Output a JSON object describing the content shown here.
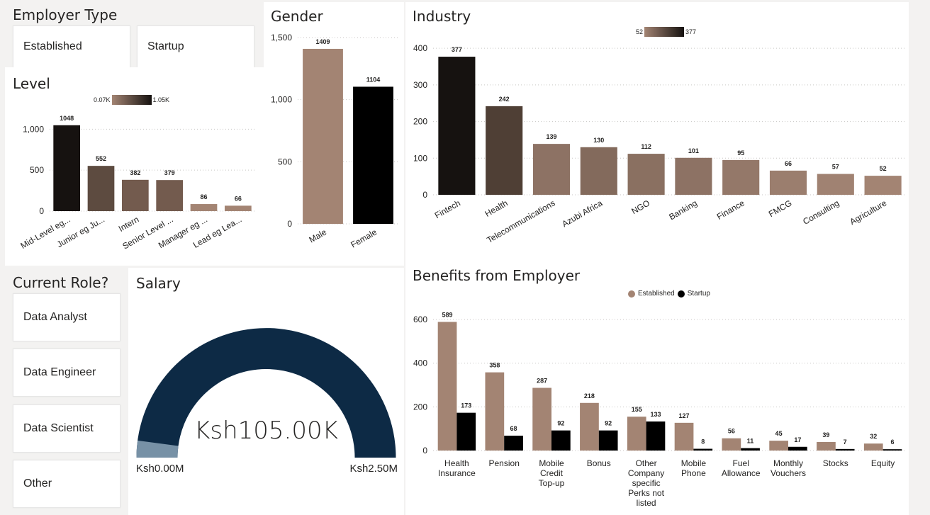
{
  "employer_type": {
    "title": "Employer Type",
    "options": [
      "Established",
      "Startup"
    ]
  },
  "current_role": {
    "title": "Current Role?",
    "options": [
      "Data Analyst",
      "Data Engineer",
      "Data Scientist",
      "Other"
    ]
  },
  "salary": {
    "title": "Salary",
    "value_label": "Ksh105.00K",
    "min_label": "Ksh0.00M",
    "max_label": "Ksh2.50M",
    "value": 0.105,
    "min": 0,
    "max": 2.5,
    "color_fill": "#0d2a45",
    "color_marker": "#7791a6"
  },
  "level": {
    "title": "Level",
    "legend_min": "0.07K",
    "legend_max": "1.05K"
  },
  "gender": {
    "title": "Gender"
  },
  "industry": {
    "title": "Industry",
    "legend_min": "52",
    "legend_max": "377"
  },
  "benefits": {
    "title": "Benefits from Employer",
    "legend": [
      "Established",
      "Startup"
    ],
    "colors": [
      "#a38473",
      "#000000"
    ]
  },
  "chart_data": [
    {
      "id": "level",
      "type": "bar",
      "title": "Level",
      "categories": [
        "Mid-Level eg...",
        "Junior eg Ju...",
        "Intern",
        "Senior Level ...",
        "Manager eg ...",
        "Lead eg Lea..."
      ],
      "values": [
        1048,
        552,
        382,
        379,
        86,
        66
      ],
      "yticks": [
        0,
        500,
        1000
      ],
      "ytick_labels": [
        "0",
        "500",
        "1,000"
      ],
      "ylim": [
        0,
        1150
      ],
      "colors": [
        "#161210",
        "#5d4b40",
        "#735b4e",
        "#735b4e",
        "#a38473",
        "#a38473"
      ],
      "grid": true
    },
    {
      "id": "gender",
      "type": "bar",
      "title": "Gender",
      "categories": [
        "Male",
        "Female"
      ],
      "values": [
        1409,
        1104
      ],
      "yticks": [
        0,
        500,
        1000,
        1500
      ],
      "ytick_labels": [
        "0",
        "500",
        "1,000",
        "1,500"
      ],
      "ylim": [
        0,
        1500
      ],
      "colors": [
        "#a38473",
        "#000000"
      ],
      "grid": true
    },
    {
      "id": "industry",
      "type": "bar",
      "title": "Industry",
      "categories": [
        "Fintech",
        "Health",
        "Telecommunications",
        "Azubi Africa",
        "NGO",
        "Banking",
        "Finance",
        "FMCG",
        "Consulting",
        "Agriculture"
      ],
      "values": [
        377,
        242,
        139,
        130,
        112,
        101,
        95,
        66,
        57,
        52
      ],
      "yticks": [
        0,
        100,
        200,
        300,
        400
      ],
      "ytick_labels": [
        "0",
        "100",
        "200",
        "300",
        "400"
      ],
      "ylim": [
        0,
        410
      ],
      "colors": [
        "#161210",
        "#4f3f35",
        "#8d7264",
        "#836a5c",
        "#8a7061",
        "#8d7264",
        "#947869",
        "#9b7e6e",
        "#a08272",
        "#a38473"
      ],
      "grid": true
    },
    {
      "id": "benefits",
      "type": "bar",
      "title": "Benefits from Employer",
      "categories": [
        "Health Insurance",
        "Pension",
        "Mobile Credit Top-up",
        "Bonus",
        "Other Company specific Perks not listed",
        "Mobile Phone",
        "Fuel Allowance",
        "Monthly Vouchers",
        "Stocks",
        "Equity"
      ],
      "series": [
        {
          "name": "Established",
          "values": [
            589,
            358,
            287,
            218,
            155,
            127,
            56,
            45,
            39,
            32
          ]
        },
        {
          "name": "Startup",
          "values": [
            173,
            68,
            92,
            92,
            133,
            8,
            11,
            17,
            7,
            6
          ]
        }
      ],
      "yticks": [
        0,
        200,
        400,
        600
      ],
      "ytick_labels": [
        "0",
        "200",
        "400",
        "600"
      ],
      "ylim": [
        0,
        600
      ],
      "legend_position": "top-center",
      "grid": true
    }
  ]
}
